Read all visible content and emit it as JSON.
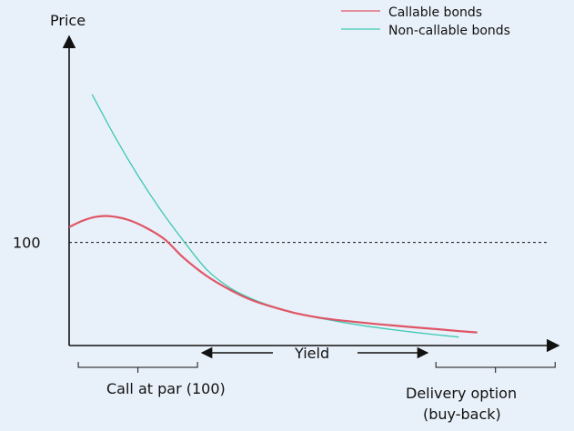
{
  "chart_data": {
    "type": "line",
    "title": "",
    "ylabel": "Price",
    "xlabel": "Yield",
    "y_reference": {
      "label": "100",
      "value": 100,
      "style": "dashed"
    },
    "xlim": [
      0,
      10
    ],
    "ylim": [
      60,
      180
    ],
    "grid": false,
    "legend": {
      "placement": "top-right"
    },
    "series": [
      {
        "name": "Callable bonds",
        "color": "#e05565",
        "points": [
          [
            0,
            106
          ],
          [
            0.3,
            108.5
          ],
          [
            0.6,
            110
          ],
          [
            0.9,
            110.2
          ],
          [
            1.3,
            108.7
          ],
          [
            1.7,
            105.5
          ],
          [
            2.1,
            101
          ],
          [
            2.5,
            94
          ],
          [
            3,
            87
          ],
          [
            3.5,
            81.7
          ],
          [
            4,
            77.5
          ],
          [
            4.5,
            74.7
          ],
          [
            5,
            72.3
          ],
          [
            5.5,
            70.7
          ],
          [
            6,
            69.6
          ],
          [
            6.5,
            68.7
          ],
          [
            7,
            67.9
          ],
          [
            7.5,
            67.1
          ],
          [
            8,
            66.4
          ],
          [
            8.5,
            65.6
          ],
          [
            8.9,
            65.1
          ]
        ]
      },
      {
        "name": "Non-callable bonds",
        "color": "#3ec9b4",
        "points": [
          [
            0.5,
            157.5
          ],
          [
            1,
            141
          ],
          [
            1.5,
            126
          ],
          [
            2,
            112.5
          ],
          [
            2.5,
            100.5
          ],
          [
            3,
            89.5
          ],
          [
            3.5,
            82.5
          ],
          [
            4,
            78
          ],
          [
            4.5,
            74.8
          ],
          [
            5,
            72.3
          ],
          [
            5.5,
            70.5
          ],
          [
            6,
            68.9
          ],
          [
            6.5,
            67.5
          ],
          [
            7,
            66.3
          ],
          [
            7.5,
            65.2
          ],
          [
            8,
            64.2
          ],
          [
            8.5,
            63.3
          ]
        ]
      }
    ]
  },
  "annotations": {
    "call_range": {
      "label": "Call at par (100)",
      "from": 0.2,
      "to": 2.8
    },
    "delivery_range": {
      "label_line1": "Delivery option",
      "label_line2": "(buy-back)",
      "from": 8.0,
      "to": 10.6
    }
  }
}
